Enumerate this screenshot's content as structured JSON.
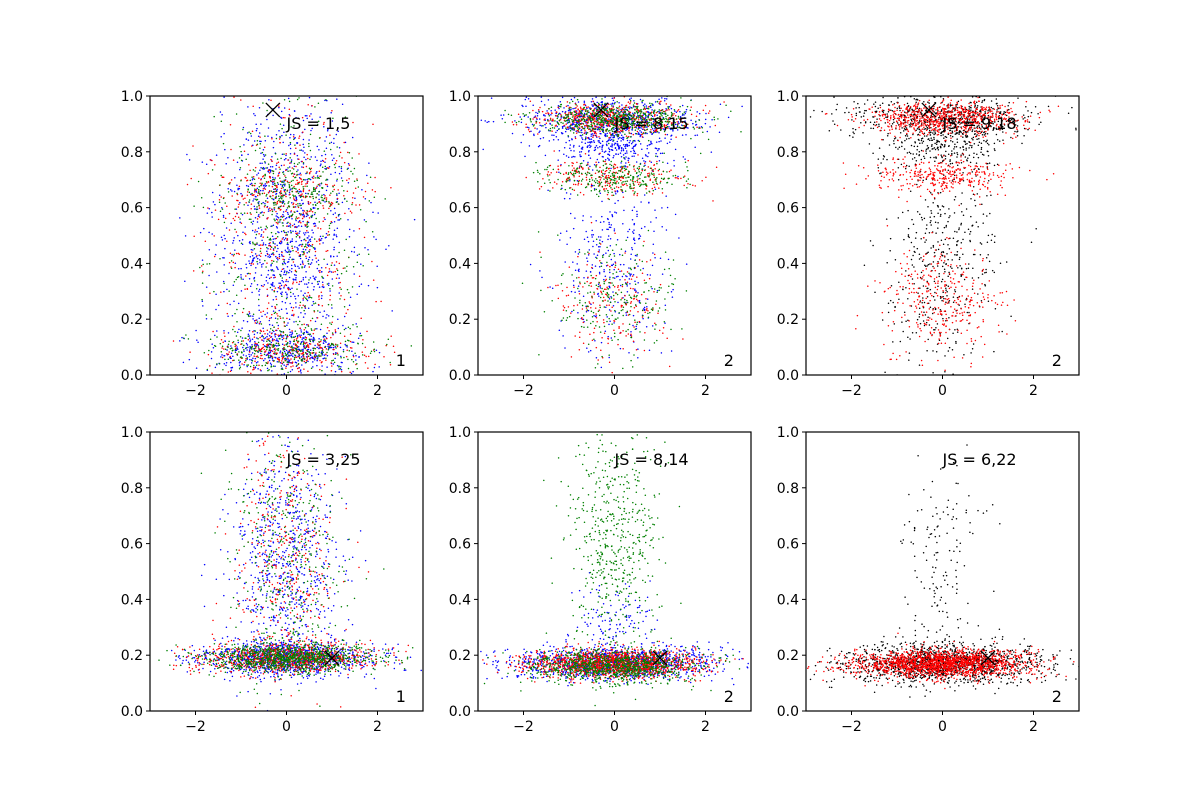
{
  "figure": {
    "axis_colors": {
      "frame": "#000000",
      "text": "#000000"
    },
    "series_colors": {
      "red": "#ff0000",
      "green": "#008000",
      "blue": "#0000ff",
      "black": "#000000"
    }
  },
  "chart_data": [
    {
      "type": "scatter",
      "panel": "top-left",
      "annotation": "JS = 1,5",
      "panel_label": "1",
      "xlim": [
        -3,
        3
      ],
      "ylim": [
        0,
        1
      ],
      "xticks": [
        "−2",
        "0",
        "2"
      ],
      "yticks": [
        "0.0",
        "0.2",
        "0.4",
        "0.6",
        "0.8",
        "1.0"
      ],
      "marker": {
        "symbol": "x",
        "x": -0.3,
        "y": 0.95
      },
      "series": [
        {
          "color": "blue",
          "points": 1500,
          "clusters": [
            {
              "y": 0.09,
              "sd": 0.04,
              "xsd": 0.85,
              "w": 0.25
            },
            {
              "y": 0.5,
              "sd": 0.26,
              "xsd": 0.75,
              "w": 0.75
            }
          ]
        },
        {
          "color": "red",
          "points": 900,
          "clusters": [
            {
              "y": 0.09,
              "sd": 0.04,
              "xsd": 0.9,
              "w": 0.3
            },
            {
              "y": 0.65,
              "sd": 0.05,
              "xsd": 0.8,
              "w": 0.2
            },
            {
              "y": 0.5,
              "sd": 0.28,
              "xsd": 0.8,
              "w": 0.5
            }
          ]
        },
        {
          "color": "green",
          "points": 900,
          "clusters": [
            {
              "y": 0.09,
              "sd": 0.04,
              "xsd": 0.9,
              "w": 0.3
            },
            {
              "y": 0.66,
              "sd": 0.05,
              "xsd": 0.8,
              "w": 0.2
            },
            {
              "y": 0.5,
              "sd": 0.28,
              "xsd": 0.8,
              "w": 0.5
            }
          ]
        }
      ]
    },
    {
      "type": "scatter",
      "panel": "top-middle",
      "annotation": "JS = 8,15",
      "panel_label": "2",
      "xlim": [
        -3,
        3
      ],
      "ylim": [
        0,
        1
      ],
      "xticks": [
        "−2",
        "0",
        "2"
      ],
      "yticks": [
        "0.0",
        "0.2",
        "0.4",
        "0.6",
        "0.8",
        "1.0"
      ],
      "marker": {
        "symbol": "x",
        "x": -0.3,
        "y": 0.95
      },
      "series": [
        {
          "color": "blue",
          "points": 1300,
          "clusters": [
            {
              "y": 0.92,
              "sd": 0.04,
              "xsd": 1.0,
              "w": 0.5
            },
            {
              "y": 0.82,
              "sd": 0.04,
              "xsd": 0.7,
              "w": 0.25
            },
            {
              "y": 0.4,
              "sd": 0.17,
              "xsd": 0.6,
              "w": 0.25
            }
          ]
        },
        {
          "color": "red",
          "points": 1000,
          "clusters": [
            {
              "y": 0.92,
              "sd": 0.03,
              "xsd": 0.85,
              "w": 0.55
            },
            {
              "y": 0.71,
              "sd": 0.03,
              "xsd": 0.8,
              "w": 0.25
            },
            {
              "y": 0.25,
              "sd": 0.1,
              "xsd": 0.6,
              "w": 0.2
            }
          ]
        },
        {
          "color": "green",
          "points": 1100,
          "clusters": [
            {
              "y": 0.92,
              "sd": 0.03,
              "xsd": 0.85,
              "w": 0.55
            },
            {
              "y": 0.71,
              "sd": 0.03,
              "xsd": 0.8,
              "w": 0.25
            },
            {
              "y": 0.27,
              "sd": 0.1,
              "xsd": 0.65,
              "w": 0.2
            }
          ]
        }
      ]
    },
    {
      "type": "scatter",
      "panel": "top-right",
      "annotation": "JS = 9,18",
      "panel_label": "2",
      "xlim": [
        -3,
        3
      ],
      "ylim": [
        0,
        1
      ],
      "xticks": [
        "−2",
        "0",
        "2"
      ],
      "yticks": [
        "0.0",
        "0.2",
        "0.4",
        "0.6",
        "0.8",
        "1.0"
      ],
      "marker": {
        "symbol": "x",
        "x": -0.3,
        "y": 0.95
      },
      "series": [
        {
          "color": "black",
          "points": 1300,
          "clusters": [
            {
              "y": 0.92,
              "sd": 0.04,
              "xsd": 1.0,
              "w": 0.45
            },
            {
              "y": 0.82,
              "sd": 0.05,
              "xsd": 0.7,
              "w": 0.2
            },
            {
              "y": 0.4,
              "sd": 0.2,
              "xsd": 0.6,
              "w": 0.35
            }
          ]
        },
        {
          "color": "red",
          "points": 1400,
          "clusters": [
            {
              "y": 0.92,
              "sd": 0.03,
              "xsd": 0.85,
              "w": 0.55
            },
            {
              "y": 0.71,
              "sd": 0.03,
              "xsd": 0.8,
              "w": 0.22
            },
            {
              "y": 0.27,
              "sd": 0.1,
              "xsd": 0.6,
              "w": 0.23
            }
          ]
        }
      ]
    },
    {
      "type": "scatter",
      "panel": "bottom-left",
      "annotation": "JS = 3,25",
      "panel_label": "1",
      "xlim": [
        -3,
        3
      ],
      "ylim": [
        0,
        1
      ],
      "xticks": [
        "−2",
        "0",
        "2"
      ],
      "yticks": [
        "0.0",
        "0.2",
        "0.4",
        "0.6",
        "0.8",
        "1.0"
      ],
      "marker": {
        "symbol": "x",
        "x": 1.0,
        "y": 0.19
      },
      "series": [
        {
          "color": "blue",
          "points": 1700,
          "clusters": [
            {
              "y": 0.19,
              "sd": 0.03,
              "xsd": 0.95,
              "w": 0.62
            },
            {
              "y": 0.55,
              "sd": 0.22,
              "xsd": 0.6,
              "w": 0.38
            }
          ]
        },
        {
          "color": "red",
          "points": 1200,
          "clusters": [
            {
              "y": 0.19,
              "sd": 0.025,
              "xsd": 0.95,
              "w": 0.7
            },
            {
              "y": 0.55,
              "sd": 0.22,
              "xsd": 0.6,
              "w": 0.3
            }
          ]
        },
        {
          "color": "green",
          "points": 1400,
          "clusters": [
            {
              "y": 0.19,
              "sd": 0.025,
              "xsd": 0.95,
              "w": 0.72
            },
            {
              "y": 0.55,
              "sd": 0.22,
              "xsd": 0.6,
              "w": 0.28
            }
          ]
        }
      ]
    },
    {
      "type": "scatter",
      "panel": "bottom-middle",
      "annotation": "JS = 8,14",
      "panel_label": "2",
      "xlim": [
        -3,
        3
      ],
      "ylim": [
        0,
        1
      ],
      "xticks": [
        "−2",
        "0",
        "2"
      ],
      "yticks": [
        "0.0",
        "0.2",
        "0.4",
        "0.6",
        "0.8",
        "1.0"
      ],
      "marker": {
        "symbol": "x",
        "x": 1.0,
        "y": 0.19
      },
      "series": [
        {
          "color": "blue",
          "points": 1300,
          "clusters": [
            {
              "y": 0.17,
              "sd": 0.03,
              "xsd": 1.1,
              "w": 0.9
            },
            {
              "y": 0.3,
              "sd": 0.08,
              "xsd": 0.5,
              "w": 0.1
            }
          ]
        },
        {
          "color": "red",
          "points": 1400,
          "clusters": [
            {
              "y": 0.17,
              "sd": 0.025,
              "xsd": 0.95,
              "w": 1.0
            }
          ]
        },
        {
          "color": "green",
          "points": 1500,
          "clusters": [
            {
              "y": 0.16,
              "sd": 0.03,
              "xsd": 0.95,
              "w": 0.62
            },
            {
              "y": 0.6,
              "sd": 0.23,
              "xsd": 0.5,
              "w": 0.38
            }
          ]
        }
      ]
    },
    {
      "type": "scatter",
      "panel": "bottom-right",
      "annotation": "JS = 6,22",
      "panel_label": "2",
      "xlim": [
        -3,
        3
      ],
      "ylim": [
        0,
        1
      ],
      "xticks": [
        "−2",
        "0",
        "2"
      ],
      "yticks": [
        "0.0",
        "0.2",
        "0.4",
        "0.6",
        "0.8",
        "1.0"
      ],
      "marker": {
        "symbol": "x",
        "x": 1.0,
        "y": 0.19
      },
      "series": [
        {
          "color": "black",
          "points": 1600,
          "clusters": [
            {
              "y": 0.17,
              "sd": 0.035,
              "xsd": 1.1,
              "w": 0.9
            },
            {
              "y": 0.55,
              "sd": 0.2,
              "xsd": 0.45,
              "w": 0.1
            }
          ]
        },
        {
          "color": "red",
          "points": 1700,
          "clusters": [
            {
              "y": 0.17,
              "sd": 0.025,
              "xsd": 0.95,
              "w": 1.0
            }
          ]
        }
      ]
    }
  ]
}
